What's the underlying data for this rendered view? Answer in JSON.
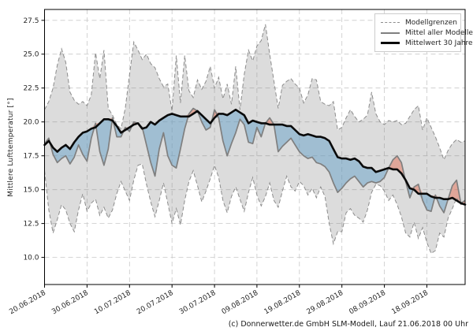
{
  "figure": {
    "ylabel": "Mittlere Lufttemperatur [°]",
    "caption": "(c) Donnerwetter.de GmbH SLM-Modell, Lauf 21.06.2018 00 Uhr"
  },
  "legend": {
    "items": [
      {
        "label": "Modellgrenzen",
        "style": "dashed-gray-line"
      },
      {
        "label": "Mittel aller Modelle",
        "style": "solid-gray-line"
      },
      {
        "label": "Mittelwert 30 Jahre",
        "style": "thick-black-line"
      }
    ]
  },
  "colors": {
    "background": "#ffffff",
    "model_range_fill": "#dcdcdc",
    "below_mean_fill": "#b9d7e8",
    "above_mean_fill": "#f2b4a8",
    "bounds_line": "#8c8c8c",
    "model_mean_line": "#7f7f7f",
    "mean30_line": "#0a0a0a",
    "grid_line": "#c9c9c9",
    "spine": "#000000",
    "tick_text": "#262626"
  },
  "chart_data": {
    "type": "line",
    "title": "",
    "xlabel": "",
    "ylabel": "Mittlere Lufttemperatur [°]",
    "grid": true,
    "legend_position": "upper right",
    "x_unit": "days (daily values)",
    "x_start_date": "20.06.2018",
    "x_tick_days": [
      0,
      10,
      20,
      30,
      40,
      50,
      60,
      70,
      80,
      90
    ],
    "x_tick_labels": [
      "20.06.2018",
      "30.06.2018",
      "10.07.2018",
      "20.07.2018",
      "30.07.2018",
      "09.08.2018",
      "19.08.2018",
      "29.08.2018",
      "08.09.2018",
      "18.09.2018"
    ],
    "y_tick_labels": [
      "27.5",
      "25.0",
      "22.5",
      "20.0",
      "17.5",
      "15.0",
      "12.5",
      "10.0"
    ],
    "y_ticks": [
      27.5,
      25.0,
      22.5,
      20.0,
      17.5,
      15.0,
      12.5,
      10.0
    ],
    "ylim": [
      8.0,
      28.3
    ],
    "series": [
      {
        "name": "Modellgrenzen (obere Grenze)",
        "values": [
          20.9,
          21.5,
          22.5,
          24.2,
          25.4,
          24.4,
          22.2,
          21.6,
          21.3,
          21.5,
          21.2,
          22.0,
          25.1,
          23.2,
          25.3,
          21.0,
          20.5,
          19.8,
          19.5,
          21.0,
          23.5,
          25.9,
          25.3,
          24.6,
          25.0,
          24.3,
          24.0,
          23.2,
          22.6,
          22.8,
          20.8,
          24.9,
          21.4,
          24.9,
          22.3,
          21.8,
          23.1,
          22.4,
          23.0,
          24.1,
          22.5,
          23.3,
          21.7,
          22.8,
          21.3,
          24.1,
          20.9,
          23.5,
          25.3,
          24.5,
          25.6,
          26.0,
          27.2,
          25.0,
          23.0,
          21.0,
          22.7,
          23.0,
          23.2,
          22.8,
          22.5,
          21.4,
          22.0,
          23.2,
          23.1,
          21.5,
          21.3,
          21.2,
          21.5,
          19.4,
          19.6,
          20.3,
          20.9,
          20.4,
          20.0,
          20.2,
          20.5,
          22.2,
          20.6,
          20.0,
          19.8,
          20.1,
          20.0,
          20.1,
          19.8,
          19.9,
          20.4,
          20.9,
          21.2,
          19.4,
          20.3,
          19.6,
          18.9,
          18.1,
          17.2,
          17.9,
          18.4,
          18.7,
          18.5,
          18.6
        ]
      },
      {
        "name": "Modellgrenzen (untere Grenze)",
        "values": [
          16.4,
          13.5,
          11.8,
          12.8,
          13.9,
          13.5,
          12.5,
          11.9,
          13.5,
          14.7,
          13.4,
          14.0,
          14.3,
          13.1,
          13.7,
          12.9,
          13.5,
          14.7,
          15.6,
          14.9,
          14.2,
          15.7,
          16.8,
          16.9,
          15.4,
          14.1,
          13.0,
          14.2,
          15.5,
          14.0,
          12.5,
          13.6,
          12.4,
          14.2,
          15.6,
          16.4,
          15.3,
          14.1,
          14.9,
          15.8,
          16.8,
          15.9,
          14.2,
          13.3,
          14.5,
          15.2,
          14.3,
          13.4,
          14.8,
          15.9,
          14.6,
          13.8,
          14.5,
          15.5,
          14.2,
          13.7,
          14.9,
          16.0,
          15.2,
          14.9,
          15.6,
          15.3,
          14.6,
          15.1,
          14.4,
          15.2,
          14.5,
          12.5,
          11.0,
          11.9,
          11.9,
          13.3,
          13.6,
          13.1,
          12.9,
          12.6,
          13.5,
          14.8,
          15.4,
          15.3,
          14.9,
          14.2,
          14.6,
          13.9,
          13.0,
          11.8,
          11.5,
          12.6,
          11.4,
          12.2,
          11.1,
          10.3,
          10.5,
          11.8,
          11.5,
          12.9,
          13.6,
          14.4,
          13.9,
          14.0
        ]
      },
      {
        "name": "Mittel aller Modelle",
        "values": [
          18.4,
          18.8,
          17.6,
          17.0,
          17.3,
          17.5,
          16.9,
          17.4,
          18.3,
          17.6,
          17.1,
          18.8,
          19.9,
          17.8,
          16.8,
          18.0,
          20.3,
          18.9,
          18.9,
          19.6,
          19.3,
          20.0,
          19.9,
          19.6,
          18.3,
          17.0,
          16.0,
          18.0,
          19.2,
          17.5,
          16.8,
          16.6,
          18.0,
          19.5,
          20.6,
          21.0,
          20.8,
          20.0,
          19.4,
          19.6,
          20.9,
          20.3,
          18.6,
          17.5,
          18.4,
          19.2,
          20.2,
          19.8,
          18.5,
          18.4,
          19.6,
          18.9,
          19.9,
          20.3,
          19.8,
          17.8,
          18.2,
          18.5,
          18.8,
          18.3,
          17.8,
          17.5,
          17.3,
          17.4,
          17.0,
          16.9,
          16.7,
          16.3,
          15.5,
          14.8,
          15.1,
          15.5,
          15.8,
          16.0,
          15.6,
          15.2,
          15.5,
          15.6,
          15.5,
          15.6,
          15.9,
          16.6,
          17.2,
          17.5,
          17.0,
          15.6,
          14.4,
          15.2,
          15.4,
          14.2,
          13.5,
          13.4,
          14.6,
          13.8,
          13.3,
          14.3,
          15.3,
          15.7,
          14.0,
          14.2
        ]
      },
      {
        "name": "Mittelwert 30 Jahre",
        "values": [
          18.3,
          18.6,
          18.1,
          17.8,
          18.1,
          18.3,
          18.0,
          18.5,
          18.9,
          19.2,
          19.3,
          19.5,
          19.6,
          19.9,
          20.2,
          20.2,
          20.1,
          19.7,
          19.2,
          19.4,
          19.6,
          19.8,
          19.9,
          19.5,
          19.6,
          20.0,
          19.8,
          20.1,
          20.3,
          20.5,
          20.6,
          20.5,
          20.4,
          20.4,
          20.4,
          20.6,
          20.8,
          20.5,
          20.2,
          19.9,
          20.3,
          20.6,
          20.6,
          20.5,
          20.7,
          20.9,
          20.7,
          20.5,
          19.9,
          20.1,
          20.0,
          19.9,
          19.9,
          19.8,
          19.8,
          19.8,
          19.8,
          19.7,
          19.7,
          19.4,
          19.1,
          19.0,
          19.1,
          19.0,
          18.9,
          18.9,
          18.8,
          18.6,
          18.0,
          17.4,
          17.3,
          17.3,
          17.2,
          17.3,
          17.1,
          16.7,
          16.6,
          16.6,
          16.3,
          16.4,
          16.5,
          16.6,
          16.5,
          16.5,
          16.2,
          15.7,
          15.1,
          15.0,
          14.7,
          14.7,
          14.7,
          14.5,
          14.4,
          14.4,
          14.3,
          14.3,
          14.4,
          14.2,
          14.0,
          13.9
        ]
      }
    ]
  }
}
